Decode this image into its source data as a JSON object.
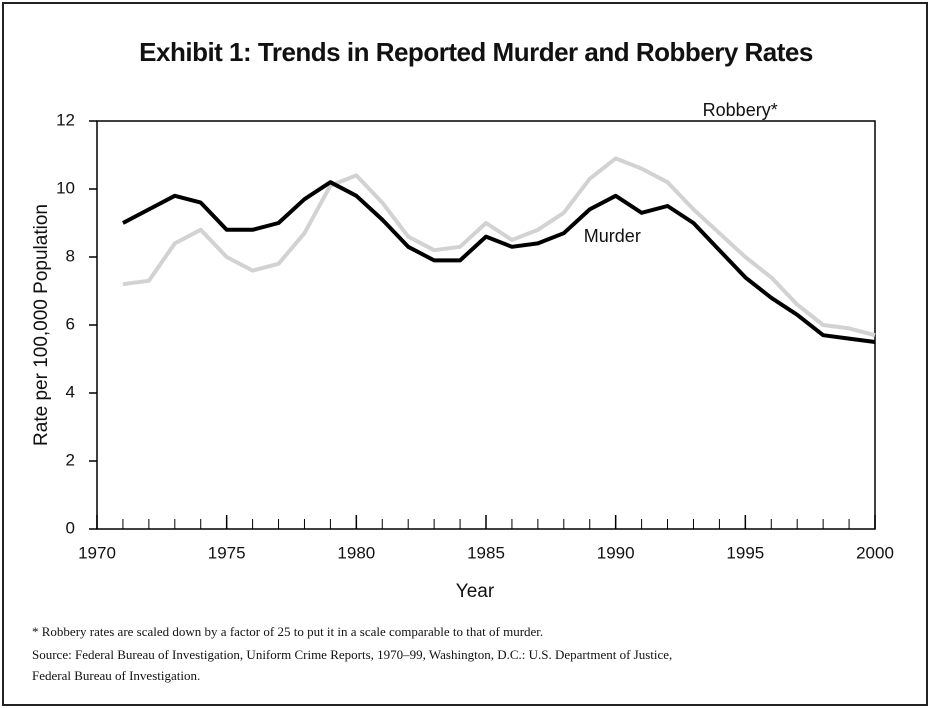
{
  "chart_data": {
    "type": "line",
    "title": "Exhibit 1: Trends in Reported Murder and Robbery Rates",
    "x_label": "Year",
    "y_label": "Rate per 100,000 Population",
    "x": [
      1971,
      1972,
      1973,
      1974,
      1975,
      1976,
      1977,
      1978,
      1979,
      1980,
      1981,
      1982,
      1983,
      1984,
      1985,
      1986,
      1987,
      1988,
      1989,
      1990,
      1991,
      1992,
      1993,
      1994,
      1995,
      1996,
      1997,
      1998,
      1999,
      2000
    ],
    "series": [
      {
        "name": "Robbery*",
        "color": "#d2d2d2",
        "values": [
          7.2,
          7.3,
          8.4,
          8.8,
          8.0,
          7.6,
          7.8,
          8.7,
          10.1,
          10.4,
          9.6,
          8.6,
          8.2,
          8.3,
          9.0,
          8.5,
          8.8,
          9.3,
          10.3,
          10.9,
          10.6,
          10.2,
          9.4,
          8.7,
          8.0,
          7.4,
          6.6,
          6.0,
          5.9,
          5.7
        ]
      },
      {
        "name": "Murder",
        "color": "#000000",
        "values": [
          9.0,
          9.4,
          9.8,
          9.6,
          8.8,
          8.8,
          9.0,
          9.7,
          10.2,
          9.8,
          9.1,
          8.3,
          7.9,
          7.9,
          8.6,
          8.3,
          8.4,
          8.7,
          9.4,
          9.8,
          9.3,
          9.5,
          9.0,
          8.2,
          7.4,
          6.8,
          6.3,
          5.7,
          5.6,
          5.5
        ]
      }
    ],
    "xlim": [
      1970,
      2000
    ],
    "xticks": [
      1970,
      1975,
      1980,
      1985,
      1990,
      1995,
      2000
    ],
    "xminorticks": [
      1971,
      1972,
      1973,
      1974,
      1976,
      1977,
      1978,
      1979,
      1981,
      1982,
      1983,
      1984,
      1986,
      1987,
      1988,
      1989,
      1991,
      1992,
      1993,
      1994,
      1996,
      1997,
      1998,
      1999
    ],
    "ylim": [
      0,
      12
    ],
    "yticks": [
      0,
      2,
      4,
      6,
      8,
      10,
      12
    ],
    "grid": false,
    "notes": [
      "* Robbery rates are scaled down by a factor of 25 to put it in a scale comparable to that of murder.",
      "Source: Federal Bureau of Investigation, Uniform Crime Reports, 1970–99, Washington, D.C.: U.S. Department of Justice,",
      "Federal Bureau of Investigation."
    ]
  }
}
